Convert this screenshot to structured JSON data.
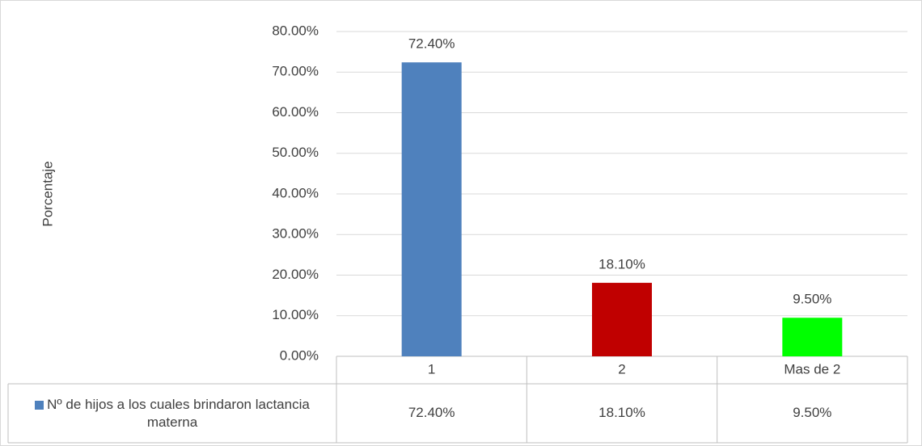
{
  "chart_data": {
    "type": "bar",
    "y_label": "Porcentaje",
    "categories": [
      "1",
      "2",
      "Mas de 2"
    ],
    "series": [
      {
        "name": "Nº de hijos a los cuales brindaron lactancia materna",
        "colors": [
          "#4f81bd",
          "#c00000",
          "#00ff00"
        ],
        "values": [
          72.4,
          18.1,
          9.5
        ],
        "value_labels": [
          "72.40%",
          "18.10%",
          "9.50%"
        ]
      }
    ],
    "ylim": [
      0,
      80
    ],
    "yticks": [
      {
        "value": 0,
        "label": "0.00%"
      },
      {
        "value": 10,
        "label": "10.00%"
      },
      {
        "value": 20,
        "label": "20.00%"
      },
      {
        "value": 30,
        "label": "30.00%"
      },
      {
        "value": 40,
        "label": "40.00%"
      },
      {
        "value": 50,
        "label": "50.00%"
      },
      {
        "value": 60,
        "label": "60.00%"
      },
      {
        "value": 70,
        "label": "70.00%"
      },
      {
        "value": 80,
        "label": "80.00%"
      }
    ],
    "grid": true,
    "data_table": true
  }
}
